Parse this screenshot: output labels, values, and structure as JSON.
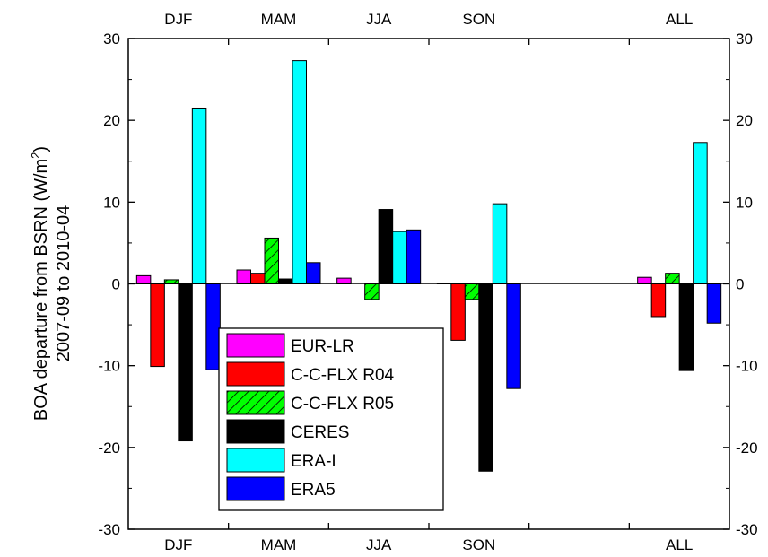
{
  "chart_data": {
    "type": "bar",
    "categories": [
      "DJF",
      "MAM",
      "JJA",
      "SON",
      "",
      "ALL"
    ],
    "series": [
      {
        "name": "EUR-LR",
        "color": "#ff00ff",
        "pattern": "solid",
        "values": [
          1.0,
          1.7,
          0.7,
          0.1,
          null,
          0.8
        ]
      },
      {
        "name": "C-C-FLX R04",
        "color": "#ff0000",
        "pattern": "solid",
        "values": [
          -10.1,
          1.3,
          null,
          -6.9,
          null,
          -4.0
        ]
      },
      {
        "name": "C-C-FLX R05",
        "color": "#00ff00",
        "pattern": "hatched",
        "values": [
          0.5,
          5.6,
          -1.9,
          -1.9,
          null,
          1.3
        ]
      },
      {
        "name": "CERES",
        "color": "#000000",
        "pattern": "solid",
        "values": [
          -19.2,
          0.6,
          9.1,
          -22.9,
          null,
          -10.6
        ]
      },
      {
        "name": "ERA-I",
        "color": "#00ffff",
        "pattern": "solid",
        "values": [
          21.5,
          27.3,
          6.4,
          9.8,
          null,
          17.3
        ]
      },
      {
        "name": "ERA5",
        "color": "#0000ff",
        "pattern": "solid",
        "values": [
          -10.5,
          2.6,
          6.6,
          -12.8,
          null,
          -4.8
        ]
      }
    ],
    "ylim": [
      -30,
      30
    ],
    "yticks": [
      "-30",
      "-20",
      "-10",
      "0",
      "10",
      "20",
      "30"
    ],
    "ylabel_line1": "BOA departure from BSRN (W/m",
    "ylabel_sup": "2",
    "ylabel_line1_end": ")",
    "ylabel_line2": "2007-09 to 2010-04",
    "grid": false,
    "legend_position": "bottom-center",
    "zero_line": true
  }
}
